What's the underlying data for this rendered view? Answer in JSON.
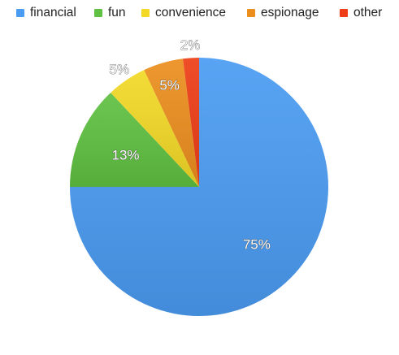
{
  "chart_data": {
    "type": "pie",
    "categories": [
      "financial",
      "fun",
      "convenience",
      "espionage",
      "other"
    ],
    "values": [
      75,
      13,
      5,
      5,
      2
    ],
    "value_labels": [
      "75%",
      "13%",
      "5%",
      "5%",
      "2%"
    ],
    "colors": [
      "#4a9bf2",
      "#5fc041",
      "#f3d926",
      "#ec8e1e",
      "#ee3d16"
    ],
    "legend_position": "top"
  }
}
